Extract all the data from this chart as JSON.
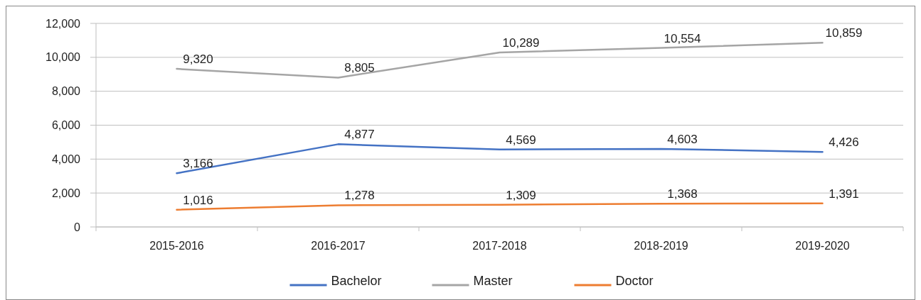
{
  "chart_data": {
    "type": "line",
    "categories": [
      "2015-2016",
      "2016-2017",
      "2017-2018",
      "2018-2019",
      "2019-2020"
    ],
    "series": [
      {
        "name": "Bachelor",
        "color": "#4472c4",
        "values": [
          3166,
          4877,
          4569,
          4603,
          4426
        ],
        "value_labels": [
          "3,166",
          "4,877",
          "4,569",
          "4,603",
          "4,426"
        ]
      },
      {
        "name": "Master",
        "color": "#a5a5a5",
        "values": [
          9320,
          8805,
          10289,
          10554,
          10859
        ],
        "value_labels": [
          "9,320",
          "8,805",
          "10,289",
          "10,554",
          "10,859"
        ]
      },
      {
        "name": "Doctor",
        "color": "#ed7d31",
        "values": [
          1016,
          1278,
          1309,
          1368,
          1391
        ],
        "value_labels": [
          "1,016",
          "1,278",
          "1,309",
          "1,368",
          "1,391"
        ]
      }
    ],
    "ylim": [
      0,
      12000
    ],
    "yticks": [
      {
        "value": 0,
        "label": "0"
      },
      {
        "value": 2000,
        "label": "2,000"
      },
      {
        "value": 4000,
        "label": "4,000"
      },
      {
        "value": 6000,
        "label": "6,000"
      },
      {
        "value": 8000,
        "label": "8,000"
      },
      {
        "value": 10000,
        "label": "10,000"
      },
      {
        "value": 12000,
        "label": "12,000"
      }
    ],
    "grid": "y",
    "legend": "bottom",
    "marker": "none",
    "line_style": "solid"
  }
}
